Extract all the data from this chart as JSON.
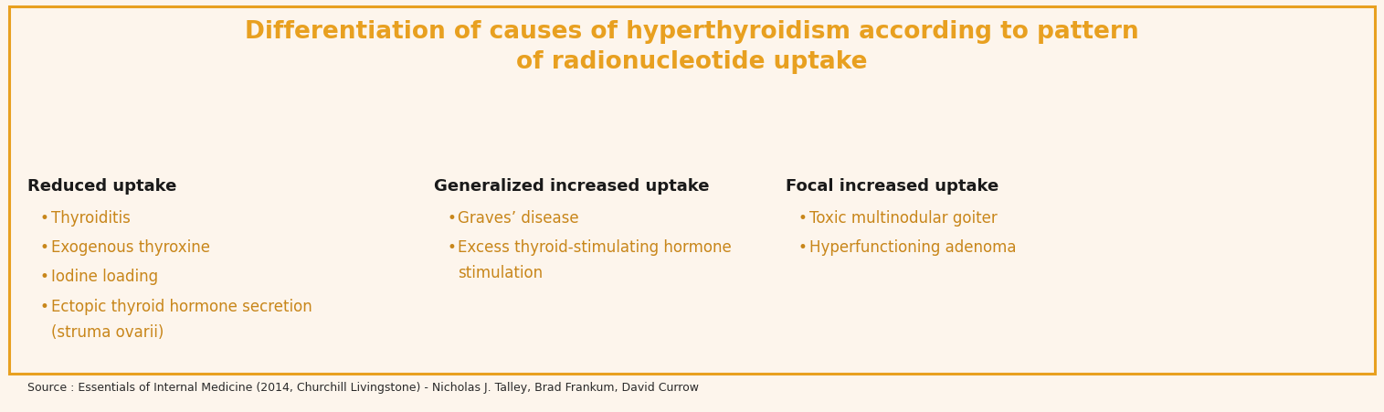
{
  "title_line1": "Differentiation of causes of hyperthyroidism according to pattern",
  "title_line2": "of radionucleotide uptake",
  "title_color": "#E8A020",
  "title_fontsize": 19,
  "bg_color": "#FDF5EC",
  "border_color": "#E8A020",
  "col1_header": "Reduced uptake",
  "col2_header": "Generalized increased uptake",
  "col3_header": "Focal increased uptake",
  "header_color": "#1a1a1a",
  "header_fontsize": 13,
  "col1_items": [
    "Thyroiditis",
    "Exogenous thyroxine",
    "Iodine loading",
    "Ectopic thyroid hormone secretion\n(struma ovarii)"
  ],
  "col2_items": [
    "Graves’ disease",
    "Excess thyroid-stimulating hormone\nstimulation"
  ],
  "col3_items": [
    "Toxic multinodular goiter",
    "Hyperfunctioning adenoma"
  ],
  "item_color": "#C8861A",
  "item_fontsize": 12,
  "source_text": "Source : Essentials of Internal Medicine (2014, Churchill Livingstone) - Nicholas J. Talley, Brad Frankum, David Currow",
  "source_color": "#2a2a2a",
  "source_fontsize": 9,
  "figwidth": 15.15,
  "figheight": 4.52,
  "dpi": 100
}
